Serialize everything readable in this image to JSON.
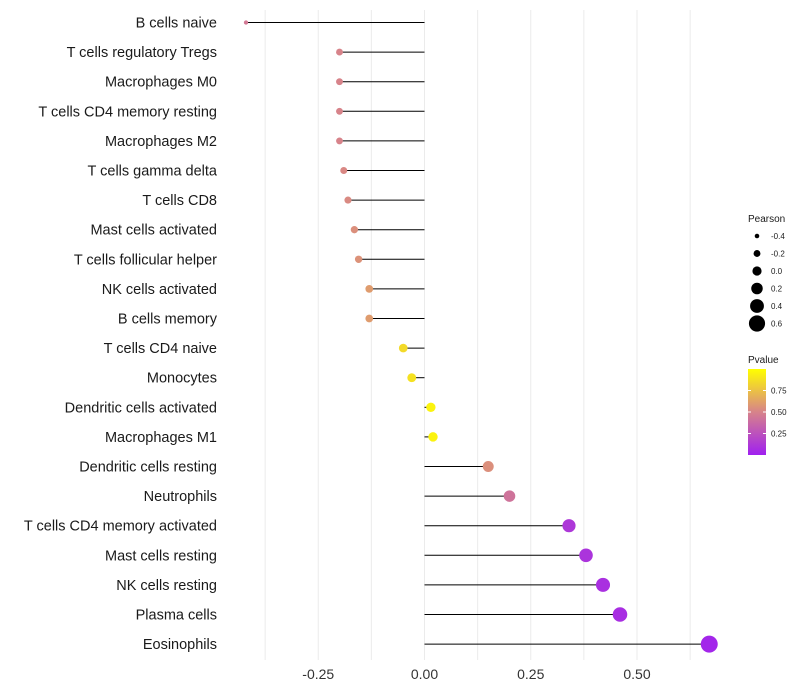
{
  "chart_data": {
    "type": "lollipop",
    "title": "",
    "xlabel": "",
    "ylabel": "",
    "xlim": [
      -0.375,
      0.7
    ],
    "xticks": [
      -0.25,
      0.0,
      0.25,
      0.5
    ],
    "xtick_labels": [
      "-0.25",
      "0.00",
      "0.25",
      "0.50"
    ],
    "categories": [
      "B cells naive",
      "T cells regulatory  Tregs",
      "Macrophages M0",
      "T cells CD4 memory resting",
      "Macrophages M2",
      "T cells gamma delta",
      "T cells CD8",
      "Mast cells activated",
      "T cells follicular helper",
      "NK cells activated",
      "B cells memory",
      "T cells CD4 naive",
      "Monocytes",
      "Dendritic cells activated",
      "Macrophages M1",
      "Dendritic cells resting",
      "Neutrophils",
      "T cells CD4 memory activated",
      "Mast cells resting",
      "NK cells resting",
      "Plasma cells",
      "Eosinophils"
    ],
    "pearson": [
      -0.42,
      -0.2,
      -0.2,
      -0.2,
      -0.2,
      -0.19,
      -0.18,
      -0.165,
      -0.155,
      -0.13,
      -0.13,
      -0.05,
      -0.03,
      0.015,
      0.02,
      0.15,
      0.2,
      0.34,
      0.38,
      0.42,
      0.46,
      0.67
    ],
    "pvalue": [
      0.45,
      0.5,
      0.5,
      0.5,
      0.5,
      0.52,
      0.53,
      0.55,
      0.56,
      0.6,
      0.6,
      0.85,
      0.88,
      0.95,
      0.95,
      0.55,
      0.42,
      0.12,
      0.1,
      0.08,
      0.07,
      0.03
    ],
    "legend": {
      "size_title": "Pearson",
      "size_labels": [
        "-0.4",
        "-0.2",
        "0.0",
        "0.2",
        "0.4",
        "0.6"
      ],
      "size_values": [
        -0.4,
        -0.2,
        0.0,
        0.2,
        0.4,
        0.6
      ],
      "color_title": "Pvalue",
      "color_labels": [
        "0.75",
        "0.50",
        "0.25"
      ],
      "color_values": [
        0.75,
        0.5,
        0.25
      ],
      "color_range": [
        0.0,
        1.0
      ],
      "color_low": "#a020f0",
      "color_high": "#ffff00"
    }
  }
}
